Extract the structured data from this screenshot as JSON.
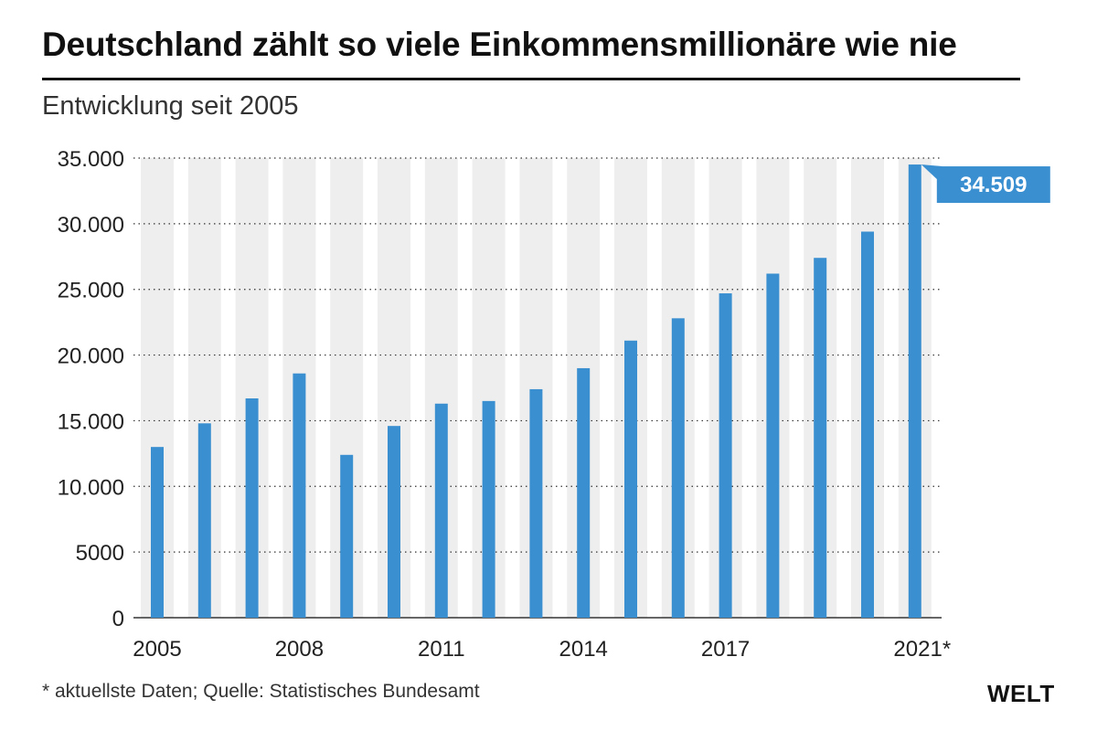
{
  "header": {
    "title": "Deutschland zählt so viele Einkommensmillionäre wie nie",
    "subtitle": "Entwicklung seit 2005"
  },
  "footer": {
    "note": "* aktuellste Daten; Quelle: Statistisches Bundesamt",
    "logo": "WELT"
  },
  "colors": {
    "bar": "#3a8fd1",
    "column_band": "#eeeeee",
    "callout": "#3a8fd1"
  },
  "chart_data": {
    "type": "bar",
    "title": "Deutschland zählt so viele Einkommensmillionäre wie nie",
    "subtitle": "Entwicklung seit 2005",
    "xlabel": "",
    "ylabel": "",
    "ylim": [
      0,
      35000
    ],
    "y_ticks": [
      0,
      5000,
      10000,
      15000,
      20000,
      25000,
      30000,
      35000
    ],
    "y_tick_labels": [
      "0",
      "5000",
      "10.000",
      "15.000",
      "20.000",
      "25.000",
      "30.000",
      "35.000"
    ],
    "grid": "horizontal dotted",
    "categories": [
      "2005",
      "2006",
      "2007",
      "2008",
      "2009",
      "2010",
      "2011",
      "2012",
      "2013",
      "2014",
      "2015",
      "2016",
      "2017",
      "2018",
      "2019",
      "2020",
      "2021"
    ],
    "x_tick_labels": [
      "2005",
      "",
      "",
      "2008",
      "",
      "",
      "2011",
      "",
      "",
      "2014",
      "",
      "",
      "2017",
      "",
      "",
      "",
      "2021*"
    ],
    "values": [
      13000,
      14800,
      16700,
      18600,
      12400,
      14600,
      16300,
      16500,
      17400,
      19000,
      21100,
      22800,
      24700,
      26200,
      27400,
      29400,
      34509
    ],
    "annotation": {
      "category": "2021",
      "label": "34.509"
    }
  }
}
